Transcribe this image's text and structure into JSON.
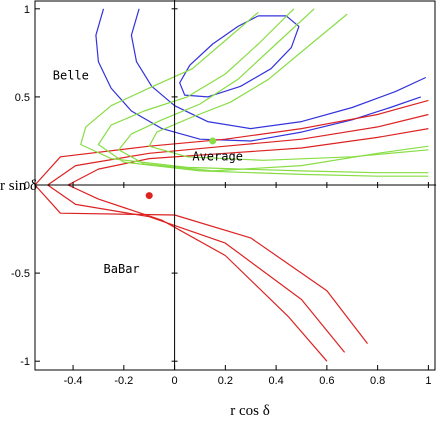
{
  "chart_data": {
    "type": "line",
    "title": "",
    "xlabel": "r cos δ",
    "ylabel": "r sin δ",
    "xlim": [
      -0.55,
      1.03
    ],
    "ylim": [
      -1.05,
      1.05
    ],
    "grid": false,
    "x_ticks": [
      {
        "value": -0.4,
        "label": "-0.4"
      },
      {
        "value": -0.2,
        "label": "-0.2"
      },
      {
        "value": 0,
        "label": "0"
      },
      {
        "value": 0.2,
        "label": "0.2"
      },
      {
        "value": 0.4,
        "label": "0.4"
      },
      {
        "value": 0.6,
        "label": "0.6"
      },
      {
        "value": 0.8,
        "label": "0.8"
      },
      {
        "value": 1,
        "label": "1"
      }
    ],
    "y_ticks": [
      {
        "value": 1,
        "label": "1"
      },
      {
        "value": 0.5,
        "label": "0.5"
      },
      {
        "value": 0,
        "label": "0"
      },
      {
        "value": -0.5,
        "label": "-0.5"
      },
      {
        "value": -1,
        "label": "-1"
      }
    ],
    "annotations": [
      {
        "text": "Belle",
        "x": -0.48,
        "y": 0.6
      },
      {
        "text": "Average",
        "x": 0.07,
        "y": 0.14
      },
      {
        "text": "BaBar",
        "x": -0.28,
        "y": -0.5
      }
    ],
    "colors": {
      "belle": "#3333dd",
      "babar": "#dd2222",
      "average": "#88dd44"
    },
    "series": [
      {
        "group": "belle",
        "points": [
          [
            -0.28,
            1.0
          ],
          [
            -0.31,
            0.85
          ],
          [
            -0.3,
            0.7
          ],
          [
            -0.25,
            0.55
          ],
          [
            -0.17,
            0.42
          ],
          [
            -0.05,
            0.32
          ],
          [
            0.1,
            0.26
          ],
          [
            0.3,
            0.25
          ],
          [
            0.5,
            0.3
          ],
          [
            0.7,
            0.37
          ],
          [
            0.85,
            0.44
          ],
          [
            0.97,
            0.5
          ]
        ]
      },
      {
        "group": "belle",
        "points": [
          [
            -0.14,
            1.0
          ],
          [
            -0.17,
            0.85
          ],
          [
            -0.15,
            0.7
          ],
          [
            -0.09,
            0.56
          ],
          [
            0.0,
            0.45
          ],
          [
            0.13,
            0.36
          ],
          [
            0.3,
            0.32
          ],
          [
            0.5,
            0.36
          ],
          [
            0.7,
            0.44
          ],
          [
            0.87,
            0.53
          ],
          [
            0.99,
            0.61
          ]
        ]
      },
      {
        "group": "belle",
        "points": [
          [
            0.33,
            0.96
          ],
          [
            0.44,
            0.96
          ],
          [
            0.49,
            0.9
          ],
          [
            0.46,
            0.78
          ],
          [
            0.38,
            0.66
          ],
          [
            0.26,
            0.56
          ],
          [
            0.13,
            0.5
          ],
          [
            0.04,
            0.51
          ],
          [
            0.02,
            0.58
          ],
          [
            0.06,
            0.68
          ],
          [
            0.15,
            0.8
          ],
          [
            0.25,
            0.9
          ],
          [
            0.33,
            0.96
          ]
        ]
      },
      {
        "group": "babar",
        "points": [
          [
            0.6,
            -1.0
          ],
          [
            0.45,
            -0.75
          ],
          [
            0.2,
            -0.4
          ],
          [
            -0.05,
            -0.2
          ],
          [
            -0.3,
            -0.08
          ],
          [
            -0.42,
            0.0
          ],
          [
            -0.3,
            0.09
          ],
          [
            -0.1,
            0.15
          ],
          [
            0.2,
            0.18
          ],
          [
            0.5,
            0.21
          ],
          [
            0.8,
            0.27
          ],
          [
            1.0,
            0.32
          ]
        ]
      },
      {
        "group": "babar",
        "points": [
          [
            0.67,
            -0.95
          ],
          [
            0.5,
            -0.65
          ],
          [
            0.2,
            -0.33
          ],
          [
            -0.1,
            -0.18
          ],
          [
            -0.39,
            -0.11
          ],
          [
            -0.5,
            0.0
          ],
          [
            -0.39,
            0.11
          ],
          [
            -0.1,
            0.18
          ],
          [
            0.2,
            0.22
          ],
          [
            0.5,
            0.26
          ],
          [
            0.8,
            0.33
          ],
          [
            1.0,
            0.4
          ]
        ]
      },
      {
        "group": "babar",
        "points": [
          [
            0.76,
            -0.9
          ],
          [
            0.6,
            -0.6
          ],
          [
            0.3,
            -0.3
          ],
          [
            0.0,
            -0.17
          ],
          [
            -0.45,
            -0.16
          ],
          [
            -0.55,
            0.0
          ],
          [
            -0.45,
            0.16
          ],
          [
            -0.1,
            0.22
          ],
          [
            0.2,
            0.26
          ],
          [
            0.5,
            0.32
          ],
          [
            0.8,
            0.4
          ],
          [
            1.0,
            0.48
          ]
        ]
      },
      {
        "group": "average",
        "points": [
          [
            0.55,
            1.0
          ],
          [
            0.4,
            0.8
          ],
          [
            0.25,
            0.6
          ],
          [
            0.1,
            0.46
          ],
          [
            -0.05,
            0.37
          ],
          [
            -0.17,
            0.29
          ],
          [
            -0.22,
            0.2
          ],
          [
            -0.12,
            0.12
          ],
          [
            0.15,
            0.08
          ],
          [
            0.5,
            0.11
          ],
          [
            0.8,
            0.18
          ],
          [
            1.0,
            0.22
          ]
        ]
      },
      {
        "group": "average",
        "points": [
          [
            0.47,
            1.0
          ],
          [
            0.33,
            0.8
          ],
          [
            0.2,
            0.63
          ],
          [
            0.05,
            0.5
          ],
          [
            -0.12,
            0.42
          ],
          [
            -0.25,
            0.34
          ],
          [
            -0.3,
            0.23
          ],
          [
            -0.2,
            0.13
          ],
          [
            0.1,
            0.08
          ],
          [
            0.5,
            0.06
          ],
          [
            0.8,
            0.05
          ],
          [
            1.0,
            0.05
          ]
        ]
      },
      {
        "group": "average",
        "points": [
          [
            0.33,
            0.98
          ],
          [
            0.2,
            0.82
          ],
          [
            0.07,
            0.66
          ],
          [
            -0.1,
            0.55
          ],
          [
            -0.25,
            0.45
          ],
          [
            -0.35,
            0.33
          ],
          [
            -0.37,
            0.23
          ],
          [
            -0.25,
            0.15
          ],
          [
            0.05,
            0.1
          ],
          [
            0.5,
            0.08
          ],
          [
            0.8,
            0.07
          ],
          [
            1.0,
            0.07
          ]
        ]
      },
      {
        "group": "average",
        "points": [
          [
            0.68,
            0.97
          ],
          [
            0.52,
            0.78
          ],
          [
            0.37,
            0.6
          ],
          [
            0.22,
            0.47
          ],
          [
            0.06,
            0.38
          ],
          [
            -0.07,
            0.3
          ],
          [
            -0.1,
            0.22
          ],
          [
            0.05,
            0.16
          ],
          [
            0.35,
            0.14
          ],
          [
            0.7,
            0.16
          ],
          [
            1.0,
            0.2
          ]
        ]
      }
    ],
    "points": [
      {
        "group": "average",
        "x": 0.15,
        "y": 0.25
      },
      {
        "group": "babar",
        "x": -0.1,
        "y": -0.06
      }
    ]
  }
}
